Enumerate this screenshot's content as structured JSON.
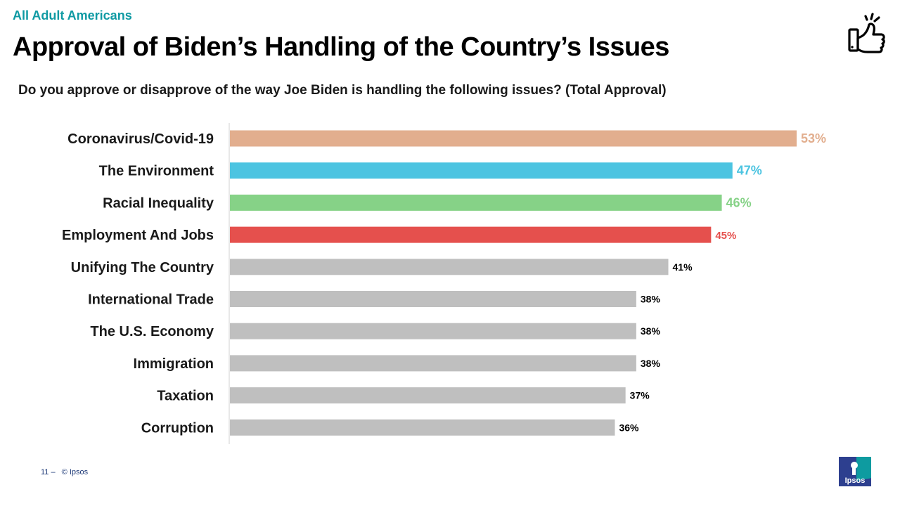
{
  "header": {
    "kicker": "All Adult Americans",
    "title": "Approval of Biden’s Handling of the Country’s Issues",
    "subtitle": "Do you approve or disapprove of the way Joe Biden is handling the following issues? (Total Approval)"
  },
  "icons": {
    "top_right": "thumbs-up-icon",
    "bottom_right": "ipsos-logo"
  },
  "footer": {
    "page_number": "11 –",
    "copyright": "© Ipsos"
  },
  "logo": {
    "text": "Ipsos"
  },
  "colors": {
    "accent": "#0f9aa3",
    "neutral_bar": "#bfbfbf",
    "axis": "#d0d0d0",
    "logo_blue": "#2d3f8f",
    "logo_teal": "#0e9ba0"
  },
  "chart_data": {
    "type": "bar",
    "orientation": "horizontal",
    "categories": [
      "Coronavirus/Covid-19",
      "The Environment",
      "Racial Inequality",
      "Employment And Jobs",
      "Unifying The Country",
      "International Trade",
      "The U.S. Economy",
      "Immigration",
      "Taxation",
      "Corruption"
    ],
    "values": [
      53,
      47,
      46,
      45,
      41,
      38,
      38,
      38,
      37,
      36
    ],
    "data_labels": [
      "53%",
      "47%",
      "46%",
      "45%",
      "41%",
      "38%",
      "38%",
      "38%",
      "37%",
      "36%"
    ],
    "bar_colors": [
      "#e2ae8e",
      "#4cc4e1",
      "#86d287",
      "#e5504d",
      "#bfbfbf",
      "#bfbfbf",
      "#bfbfbf",
      "#bfbfbf",
      "#bfbfbf",
      "#bfbfbf"
    ],
    "label_colors": [
      "#e2ae8e",
      "#4cc4e1",
      "#86d287",
      "#e5504d",
      "#000000",
      "#000000",
      "#000000",
      "#000000",
      "#000000",
      "#000000"
    ],
    "xlim": [
      0,
      53
    ],
    "grid": false,
    "legend": "none"
  }
}
